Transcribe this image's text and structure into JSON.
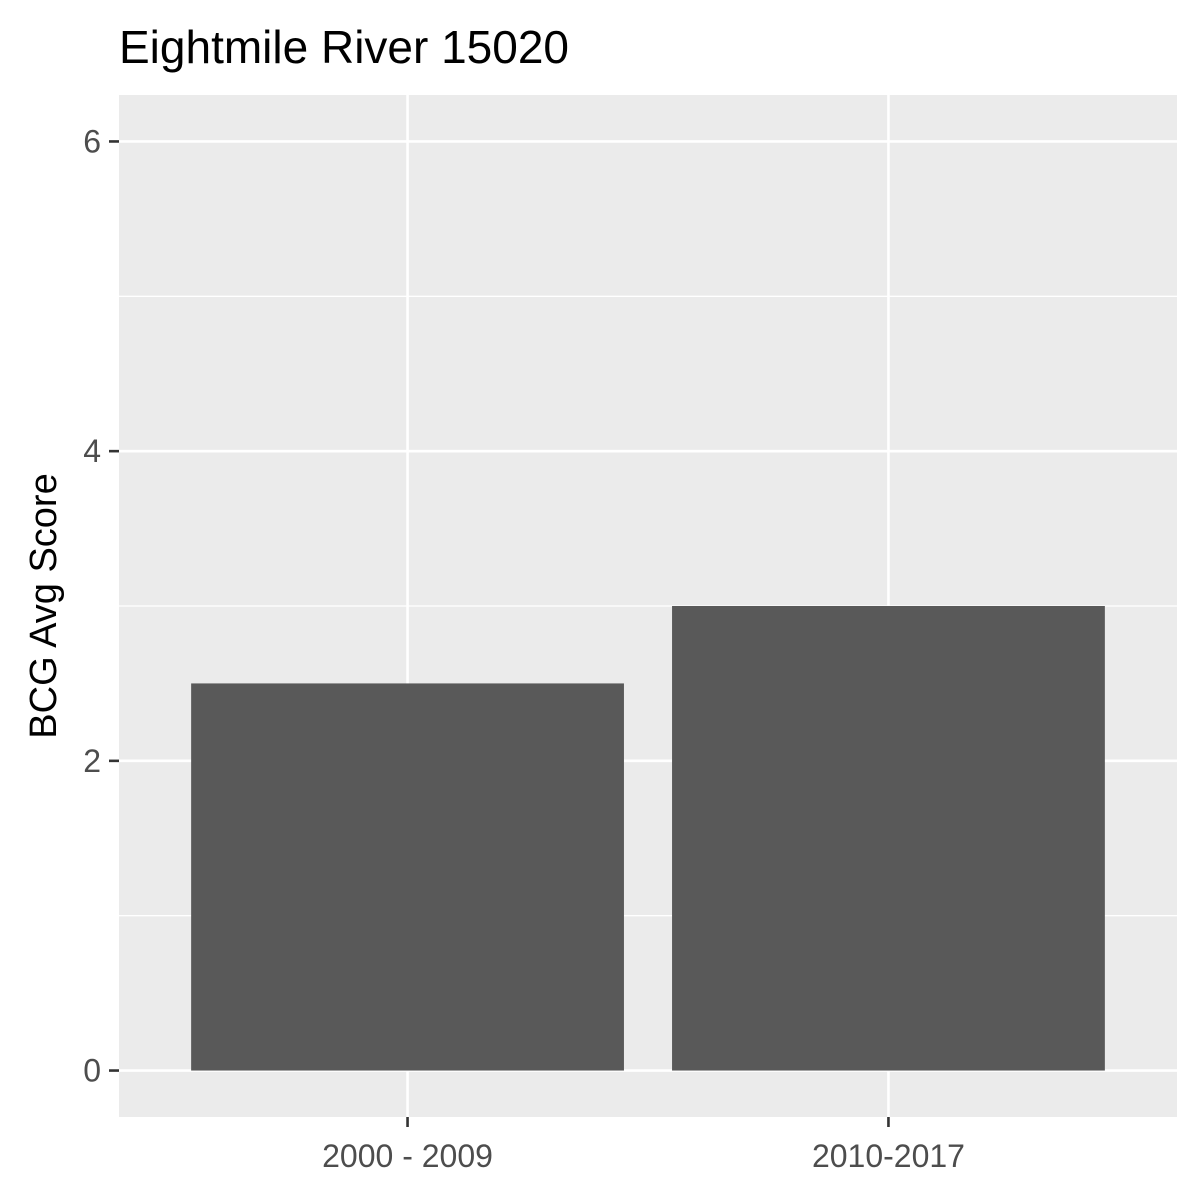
{
  "chart_data": {
    "type": "bar",
    "title": "Eightmile River 15020",
    "xlabel": "",
    "ylabel": "BCG Avg Score",
    "categories": [
      "2000 - 2009",
      "2010-2017"
    ],
    "values": [
      2.5,
      3.0
    ],
    "ylim": [
      -0.3,
      6.3
    ],
    "yticks": [
      0,
      2,
      4,
      6
    ],
    "y_minor_ticks": [
      1,
      3,
      5
    ],
    "grid": true,
    "legend": "none",
    "colors": {
      "bar": "#595959",
      "panel": "#ebebeb",
      "grid": "#ffffff",
      "tick": "#333333"
    }
  }
}
